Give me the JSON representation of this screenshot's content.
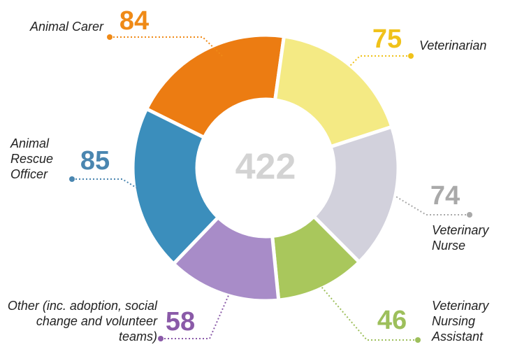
{
  "chart_data": {
    "type": "donut",
    "categories": [
      "Animal Carer",
      "Veterinarian",
      "Veterinary Nurse",
      "Veterinary Nursing Assistant",
      "Other (inc. adoption, social change and volunteer teams)",
      "Animal Rescue Officer"
    ],
    "values": [
      84,
      75,
      74,
      46,
      58,
      85
    ],
    "colors": [
      "#ec7c12",
      "#f4ea84",
      "#d2d1dc",
      "#a9c75c",
      "#a88cc8",
      "#3b8ebc"
    ],
    "label_colors": [
      "#ef8a17",
      "#f0c21a",
      "#a9a9a9",
      "#9dbf5b",
      "#8a5aa8",
      "#4a86b0"
    ],
    "total": 422
  }
}
